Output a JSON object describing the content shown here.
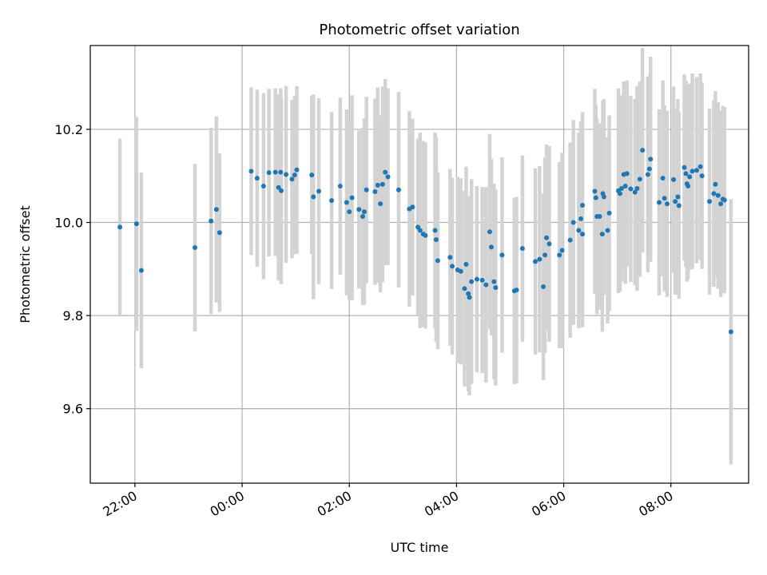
{
  "chart_data": {
    "type": "scatter",
    "title": "Photometric offset variation",
    "xlabel": "UTC time",
    "ylabel": "Photometric offset",
    "x_unit": "hours UTC (values past 24:00 fall on the next day)",
    "xlim": [
      21.167,
      33.45
    ],
    "ylim": [
      9.44,
      10.38
    ],
    "x_ticks": [
      {
        "value": 22,
        "label": "22:00"
      },
      {
        "value": 24,
        "label": "00:00"
      },
      {
        "value": 26,
        "label": "02:00"
      },
      {
        "value": 28,
        "label": "04:00"
      },
      {
        "value": 30,
        "label": "06:00"
      },
      {
        "value": 32,
        "label": "08:00"
      }
    ],
    "y_ticks": [
      {
        "value": 9.6,
        "label": "9.6"
      },
      {
        "value": 9.8,
        "label": "9.8"
      },
      {
        "value": 10.0,
        "label": "10.0"
      },
      {
        "value": 10.2,
        "label": "10.2"
      }
    ],
    "grid": true,
    "colors": {
      "points": "#1f77b4",
      "error_bars": "#d3d3d3",
      "grid": "#b0b0b0"
    },
    "points": [
      [
        21.72,
        9.99,
        0.19
      ],
      [
        22.03,
        9.997,
        0.23
      ],
      [
        22.12,
        9.897,
        0.21
      ],
      [
        23.12,
        9.946,
        0.18
      ],
      [
        23.42,
        10.003,
        0.2
      ],
      [
        23.52,
        10.028,
        0.2
      ],
      [
        23.58,
        9.978,
        0.17
      ],
      [
        24.17,
        10.11,
        0.18
      ],
      [
        24.28,
        10.095,
        0.19
      ],
      [
        24.4,
        10.078,
        0.2
      ],
      [
        24.5,
        10.107,
        0.18
      ],
      [
        24.62,
        10.108,
        0.18
      ],
      [
        24.68,
        10.075,
        0.2
      ],
      [
        24.72,
        10.108,
        0.18
      ],
      [
        24.73,
        10.068,
        0.2
      ],
      [
        24.82,
        10.103,
        0.19
      ],
      [
        24.93,
        10.093,
        0.17
      ],
      [
        24.98,
        10.102,
        0.17
      ],
      [
        25.02,
        10.113,
        0.18
      ],
      [
        25.3,
        10.102,
        0.17
      ],
      [
        25.33,
        10.055,
        0.22
      ],
      [
        25.43,
        10.067,
        0.2
      ],
      [
        25.67,
        10.047,
        0.19
      ],
      [
        25.83,
        10.078,
        0.19
      ],
      [
        25.95,
        10.043,
        0.2
      ],
      [
        26.0,
        10.023,
        0.19
      ],
      [
        26.05,
        10.053,
        0.22
      ],
      [
        26.18,
        10.028,
        0.17
      ],
      [
        26.25,
        10.013,
        0.19
      ],
      [
        26.28,
        10.023,
        0.2
      ],
      [
        26.32,
        10.07,
        0.2
      ],
      [
        26.48,
        10.066,
        0.2
      ],
      [
        26.53,
        10.08,
        0.21
      ],
      [
        26.58,
        10.04,
        0.19
      ],
      [
        26.62,
        10.082,
        0.21
      ],
      [
        26.67,
        10.108,
        0.2
      ],
      [
        26.72,
        10.098,
        0.19
      ],
      [
        26.92,
        10.07,
        0.21
      ],
      [
        27.12,
        10.029,
        0.21
      ],
      [
        27.18,
        10.033,
        0.19
      ],
      [
        27.28,
        9.99,
        0.19
      ],
      [
        27.32,
        9.983,
        0.21
      ],
      [
        27.38,
        9.975,
        0.2
      ],
      [
        27.42,
        9.972,
        0.2
      ],
      [
        27.6,
        9.983,
        0.21
      ],
      [
        27.62,
        9.963,
        0.22
      ],
      [
        27.65,
        9.918,
        0.19
      ],
      [
        27.88,
        9.925,
        0.19
      ],
      [
        27.92,
        9.906,
        0.19
      ],
      [
        28.02,
        9.898,
        0.2
      ],
      [
        28.08,
        9.895,
        0.2
      ],
      [
        28.15,
        9.858,
        0.21
      ],
      [
        28.22,
        9.847,
        0.21
      ],
      [
        28.24,
        9.839,
        0.21
      ],
      [
        28.28,
        9.873,
        0.22
      ],
      [
        28.18,
        9.91,
        0.21
      ],
      [
        28.38,
        9.878,
        0.2
      ],
      [
        28.48,
        9.876,
        0.2
      ],
      [
        28.55,
        9.866,
        0.21
      ],
      [
        28.62,
        9.98,
        0.21
      ],
      [
        28.65,
        9.947,
        0.19
      ],
      [
        28.7,
        9.873,
        0.21
      ],
      [
        28.73,
        9.86,
        0.21
      ],
      [
        28.85,
        9.93,
        0.21
      ],
      [
        29.08,
        9.853,
        0.2
      ],
      [
        29.12,
        9.855,
        0.2
      ],
      [
        29.23,
        9.944,
        0.2
      ],
      [
        29.47,
        9.916,
        0.2
      ],
      [
        29.55,
        9.921,
        0.2
      ],
      [
        29.62,
        9.862,
        0.2
      ],
      [
        29.65,
        9.93,
        0.21
      ],
      [
        29.68,
        9.967,
        0.2
      ],
      [
        29.73,
        9.954,
        0.21
      ],
      [
        29.92,
        9.93,
        0.2
      ],
      [
        29.97,
        9.94,
        0.21
      ],
      [
        30.12,
        9.962,
        0.21
      ],
      [
        30.18,
        10.0,
        0.22
      ],
      [
        30.28,
        9.983,
        0.21
      ],
      [
        30.32,
        10.008,
        0.21
      ],
      [
        30.35,
        10.037,
        0.2
      ],
      [
        30.35,
        9.975,
        0.2
      ],
      [
        30.58,
        10.067,
        0.22
      ],
      [
        30.6,
        10.053,
        0.2
      ],
      [
        30.62,
        10.013,
        0.21
      ],
      [
        30.67,
        10.013,
        0.2
      ],
      [
        30.72,
        9.975,
        0.21
      ],
      [
        30.73,
        10.062,
        0.2
      ],
      [
        30.75,
        10.055,
        0.21
      ],
      [
        30.82,
        9.983,
        0.2
      ],
      [
        30.85,
        10.02,
        0.21
      ],
      [
        31.02,
        10.068,
        0.22
      ],
      [
        31.05,
        10.062,
        0.21
      ],
      [
        31.08,
        10.073,
        0.2
      ],
      [
        31.12,
        10.103,
        0.2
      ],
      [
        31.15,
        10.078,
        0.21
      ],
      [
        31.18,
        10.105,
        0.2
      ],
      [
        31.25,
        10.072,
        0.2
      ],
      [
        31.33,
        10.065,
        0.2
      ],
      [
        31.37,
        10.073,
        0.22
      ],
      [
        31.42,
        10.093,
        0.21
      ],
      [
        31.47,
        10.155,
        0.22
      ],
      [
        31.57,
        10.103,
        0.21
      ],
      [
        31.6,
        10.115,
        0.2
      ],
      [
        31.62,
        10.136,
        0.22
      ],
      [
        31.78,
        10.043,
        0.2
      ],
      [
        31.85,
        10.095,
        0.21
      ],
      [
        31.88,
        10.052,
        0.2
      ],
      [
        31.93,
        10.04,
        0.2
      ],
      [
        32.05,
        10.092,
        0.2
      ],
      [
        32.08,
        10.045,
        0.2
      ],
      [
        32.13,
        10.055,
        0.21
      ],
      [
        32.15,
        10.036,
        0.2
      ],
      [
        32.25,
        10.118,
        0.2
      ],
      [
        32.28,
        10.105,
        0.2
      ],
      [
        32.3,
        10.083,
        0.21
      ],
      [
        32.32,
        10.078,
        0.2
      ],
      [
        32.35,
        10.098,
        0.2
      ],
      [
        32.4,
        10.11,
        0.21
      ],
      [
        32.48,
        10.112,
        0.2
      ],
      [
        32.55,
        10.12,
        0.2
      ],
      [
        32.58,
        10.1,
        0.2
      ],
      [
        32.72,
        10.045,
        0.2
      ],
      [
        32.8,
        10.062,
        0.2
      ],
      [
        32.83,
        10.082,
        0.2
      ],
      [
        32.88,
        10.058,
        0.2
      ],
      [
        32.93,
        10.04,
        0.2
      ],
      [
        32.97,
        10.05,
        0.2
      ],
      [
        33.0,
        10.048,
        0.2
      ],
      [
        33.12,
        9.765,
        0.285
      ]
    ]
  }
}
